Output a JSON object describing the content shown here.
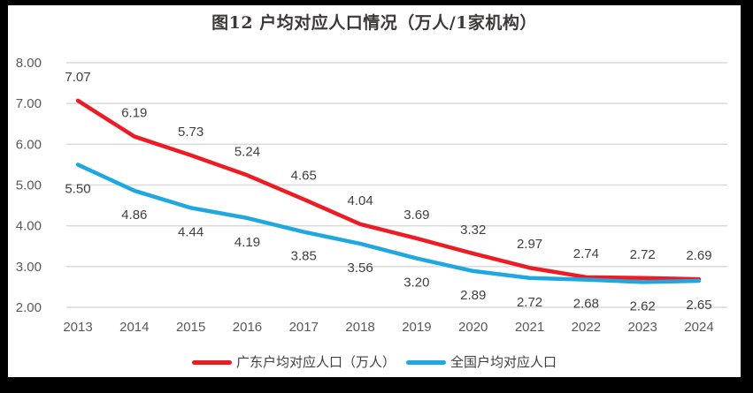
{
  "title": "图12 户均对应人口情况（万人/1家机构）",
  "colors": {
    "frame_bg": "#000000",
    "panel_bg": "#FFFFFF",
    "grid": "#D9D9D9",
    "axis_text": "#595959",
    "data_label_text": "#404040",
    "title_text": "#3B3838"
  },
  "legend": {
    "items": [
      {
        "label": "广东户均对应人口（万人）",
        "color": "#ED1C24"
      },
      {
        "label": "全国户均对应人口",
        "color": "#1EA7E1"
      }
    ]
  },
  "chart_data": {
    "type": "line",
    "title": "图12 户均对应人口情况（万人/1家机构）",
    "categories": [
      "2013",
      "2014",
      "2015",
      "2016",
      "2017",
      "2018",
      "2019",
      "2020",
      "2021",
      "2022",
      "2023",
      "2024"
    ],
    "series": [
      {
        "name": "广东户均对应人口（万人）",
        "color": "#ED1C24",
        "label_position": "above",
        "values": [
          7.07,
          6.19,
          5.73,
          5.24,
          4.65,
          4.04,
          3.69,
          3.32,
          2.97,
          2.74,
          2.72,
          2.69
        ]
      },
      {
        "name": "全国户均对应人口",
        "color": "#1EA7E1",
        "label_position": "below",
        "values": [
          5.5,
          4.86,
          4.44,
          4.19,
          3.85,
          3.56,
          3.2,
          2.89,
          2.72,
          2.68,
          2.62,
          2.65
        ]
      }
    ],
    "ylim": [
      2.0,
      8.0
    ],
    "ytick_labels": [
      "8.00",
      "7.00",
      "6.00",
      "5.00",
      "4.00",
      "3.00",
      "2.00"
    ],
    "grid": true,
    "data_labels": true,
    "legend_position": "bottom"
  }
}
